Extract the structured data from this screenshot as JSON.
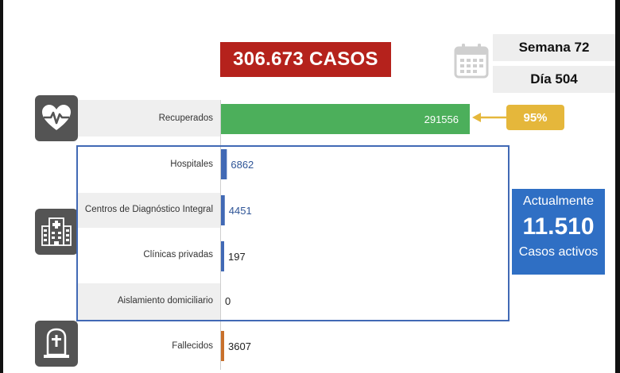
{
  "header": {
    "total_cases": "306.673 CASOS",
    "week": "Semana 72",
    "day": "Día 504"
  },
  "recovered_pct": "95%",
  "active": {
    "line1": "Actualmente",
    "count": "11.510",
    "line3": "Casos activos"
  },
  "colors": {
    "recovered": "#4caf5b",
    "active_frame": "#4169b5",
    "deaths": "#c8702b",
    "total_badge": "#b5221c",
    "pct_pill": "#e5b73b",
    "active_box": "#2f6fc4"
  },
  "icons": [
    "heart-pulse-icon",
    "hospital-icon",
    "tombstone-icon",
    "calendar-icon",
    "arrow-left-icon"
  ],
  "chart_data": {
    "type": "bar",
    "orientation": "horizontal",
    "categories": [
      "Recuperados",
      "Hospitales",
      "Centros de Diagnóstico Integral",
      "Clínicas privadas",
      "Aislamiento domiciliario",
      "Fallecidos"
    ],
    "values": [
      291556,
      6862,
      4451,
      197,
      0,
      3607
    ],
    "value_labels": [
      "291556",
      "6862",
      "4451",
      "197",
      "0",
      "3607"
    ],
    "bar_colors": [
      "#4caf5b",
      "#4169b5",
      "#4169b5",
      "#4169b5",
      "#4169b5",
      "#c8702b"
    ],
    "label_colors": [
      "#ffffff",
      "#2f5597",
      "#2f5597",
      "#222222",
      "#222222",
      "#222222"
    ],
    "xlim": [
      0,
      291556
    ]
  }
}
